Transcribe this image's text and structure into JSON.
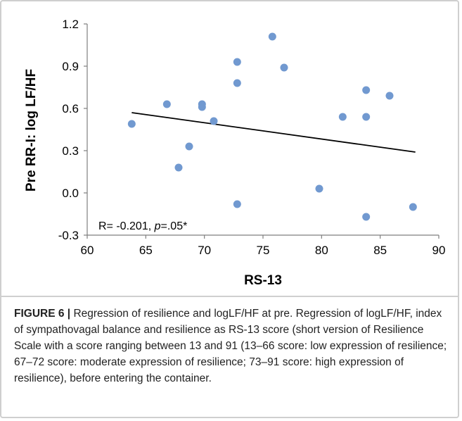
{
  "chart_data": {
    "type": "scatter",
    "title": "",
    "xlabel": "RS-13",
    "ylabel": "Pre RR-I: log LF/HF",
    "xlim": [
      60,
      90
    ],
    "ylim": [
      -0.3,
      1.2
    ],
    "x_ticks": [
      "60",
      "65",
      "70",
      "75",
      "80",
      "85",
      "90"
    ],
    "y_ticks": [
      "1.2",
      "0.9",
      "0.6",
      "0.3",
      "0.0",
      "-0.3"
    ],
    "grid": false,
    "legend": "none",
    "point_color": "#7199d0",
    "line_color": "#000000",
    "points": [
      {
        "x": 63.8,
        "y": 0.49
      },
      {
        "x": 66.8,
        "y": 0.63
      },
      {
        "x": 67.8,
        "y": 0.18
      },
      {
        "x": 68.7,
        "y": 0.33
      },
      {
        "x": 69.8,
        "y": 0.63
      },
      {
        "x": 69.8,
        "y": 0.61
      },
      {
        "x": 70.8,
        "y": 0.51
      },
      {
        "x": 72.8,
        "y": 0.93
      },
      {
        "x": 72.8,
        "y": 0.78
      },
      {
        "x": 72.8,
        "y": -0.08
      },
      {
        "x": 75.8,
        "y": 1.11
      },
      {
        "x": 76.8,
        "y": 0.89
      },
      {
        "x": 79.8,
        "y": 0.03
      },
      {
        "x": 81.8,
        "y": 0.54
      },
      {
        "x": 83.8,
        "y": 0.73
      },
      {
        "x": 83.8,
        "y": 0.54
      },
      {
        "x": 83.8,
        "y": -0.17
      },
      {
        "x": 85.8,
        "y": 0.69
      },
      {
        "x": 87.8,
        "y": -0.1
      }
    ],
    "trendline": {
      "x": [
        63.8,
        88.0
      ],
      "y": [
        0.57,
        0.29
      ]
    },
    "annotation": {
      "prefix": "R= -0.201, ",
      "p_symbol": "p",
      "suffix": "=.05*"
    }
  },
  "caption": {
    "label": "FIGURE 6 |",
    "text": " Regression of resilience and logLF/HF at pre. Regression of logLF/HF, index of sympathovagal balance and resilience as RS-13 score (short version of Resilience Scale with a score ranging between 13 and 91 (13–66 score: low expression of resilience; 67–72 score: moderate expression of resilience; 73–91 score: high expression of resilience), before entering the container."
  }
}
